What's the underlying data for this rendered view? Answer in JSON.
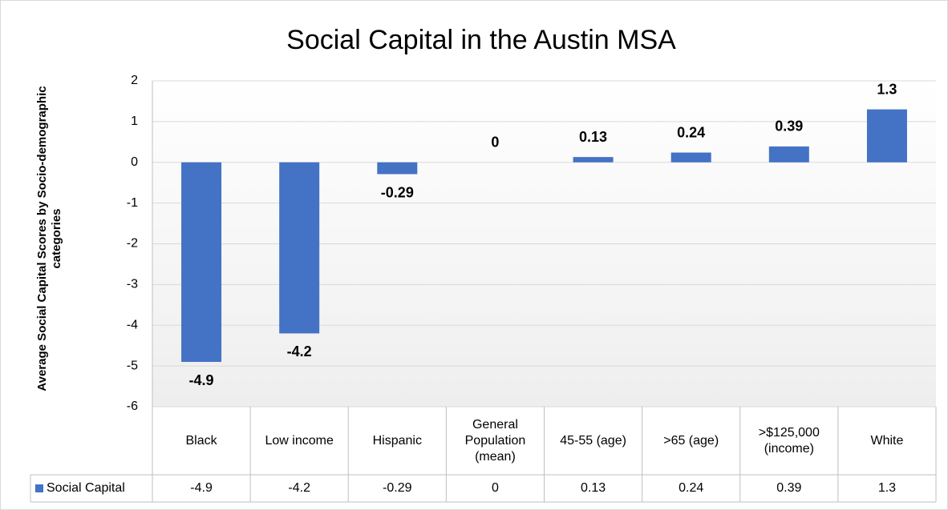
{
  "chart_data": {
    "type": "bar",
    "title": "Social Capital in the Austin MSA",
    "y_label": "Average Social Capital Scores by Socio-demographic categories",
    "categories": [
      "Black",
      "Low income",
      "Hispanic",
      "General Population (mean)",
      "45-55 (age)",
      ">65 (age)",
      ">$125,000 (income)",
      "White"
    ],
    "series": [
      {
        "name": "Social Capital",
        "color": "#4472c4",
        "values": [
          -4.9,
          -4.2,
          -0.29,
          0,
          0.13,
          0.24,
          0.39,
          1.3
        ]
      }
    ],
    "ylim": [
      -6,
      2
    ],
    "yticks": [
      -6,
      -5,
      -4,
      -3,
      -2,
      -1,
      0,
      1,
      2
    ],
    "grid": true
  }
}
